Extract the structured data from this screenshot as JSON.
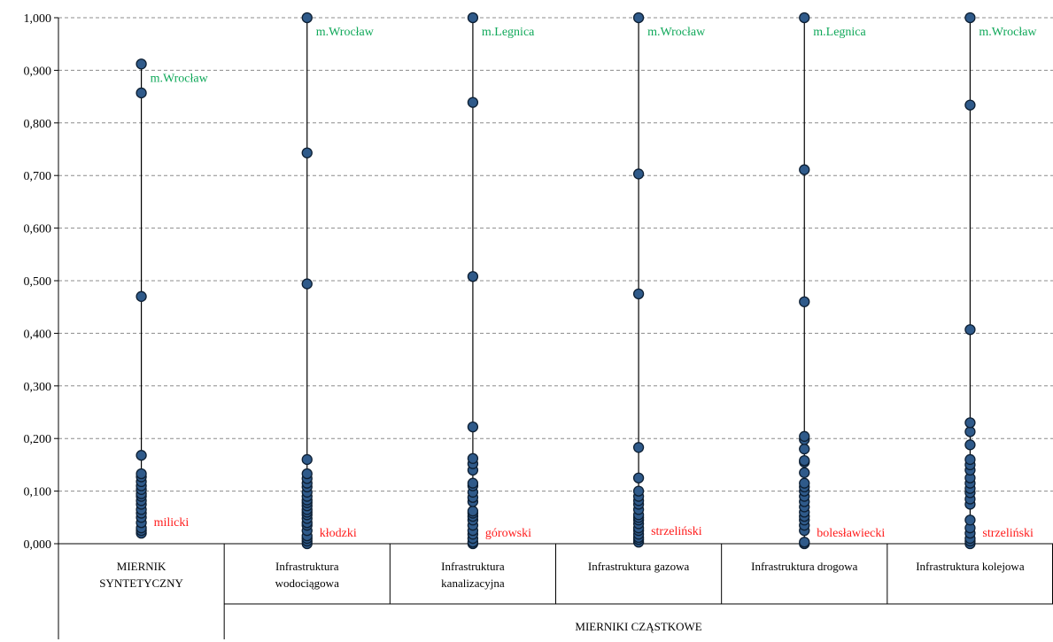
{
  "chart_data": {
    "type": "scatter",
    "ylim": [
      0,
      1
    ],
    "ystep": 0.1,
    "yticks": [
      "0,000",
      "0,100",
      "0,200",
      "0,300",
      "0,400",
      "0,500",
      "0,600",
      "0,700",
      "0,800",
      "0,900",
      "1,000"
    ],
    "grid": "horizontal-dashed",
    "group_label": "MIERNIKI CZĄSTKOWE",
    "series": [
      {
        "category": [
          "MIERNIK",
          "SYNTETYCZNY"
        ],
        "values": [
          0.912,
          0.857,
          0.47,
          0.168,
          0.133,
          0.127,
          0.118,
          0.11,
          0.103,
          0.095,
          0.09,
          0.082,
          0.075,
          0.065,
          0.058,
          0.05,
          0.04,
          0.03,
          0.025,
          0.02
        ],
        "top_label": "m.Wrocław",
        "bottom_label": "milicki"
      },
      {
        "category": [
          "Infrastruktura",
          "wodociągowa"
        ],
        "values": [
          1.0,
          0.743,
          0.494,
          0.16,
          0.133,
          0.124,
          0.115,
          0.108,
          0.098,
          0.09,
          0.083,
          0.078,
          0.072,
          0.065,
          0.06,
          0.055,
          0.048,
          0.04,
          0.035,
          0.025,
          0.015,
          0.01,
          0.005,
          0.0
        ],
        "top_label": "m.Wrocław",
        "bottom_label": "kłodzki"
      },
      {
        "category": [
          "Infrastruktura",
          "kanalizacyjna"
        ],
        "values": [
          1.0,
          0.839,
          0.508,
          0.222,
          0.162,
          0.152,
          0.14,
          0.115,
          0.11,
          0.098,
          0.088,
          0.08,
          0.062,
          0.058,
          0.052,
          0.045,
          0.035,
          0.025,
          0.018,
          0.01,
          0.003,
          0.0
        ],
        "top_label": "m.Legnica",
        "bottom_label": "górowski"
      },
      {
        "category": [
          "Infrastruktura gazowa"
        ],
        "values": [
          1.0,
          0.703,
          0.475,
          0.183,
          0.125,
          0.1,
          0.09,
          0.082,
          0.075,
          0.065,
          0.055,
          0.05,
          0.045,
          0.038,
          0.03,
          0.025,
          0.018,
          0.012,
          0.008,
          0.003
        ],
        "top_label": "m.Wrocław",
        "bottom_label": "strzeliński"
      },
      {
        "category": [
          "Infrastruktura drogowa"
        ],
        "values": [
          1.0,
          0.711,
          0.46,
          0.204,
          0.198,
          0.18,
          0.158,
          0.155,
          0.135,
          0.115,
          0.108,
          0.1,
          0.09,
          0.08,
          0.07,
          0.06,
          0.052,
          0.045,
          0.035,
          0.025,
          0.003,
          0.0
        ],
        "top_label": "m.Legnica",
        "bottom_label": "bolesławiecki"
      },
      {
        "category": [
          "Infrastruktura kolejowa"
        ],
        "values": [
          1.0,
          0.834,
          0.407,
          0.23,
          0.213,
          0.188,
          0.16,
          0.15,
          0.14,
          0.125,
          0.115,
          0.105,
          0.097,
          0.085,
          0.075,
          0.045,
          0.03,
          0.02,
          0.01,
          0.005,
          0.0
        ],
        "top_label": "m.Wrocław",
        "bottom_label": "strzeliński"
      }
    ]
  }
}
